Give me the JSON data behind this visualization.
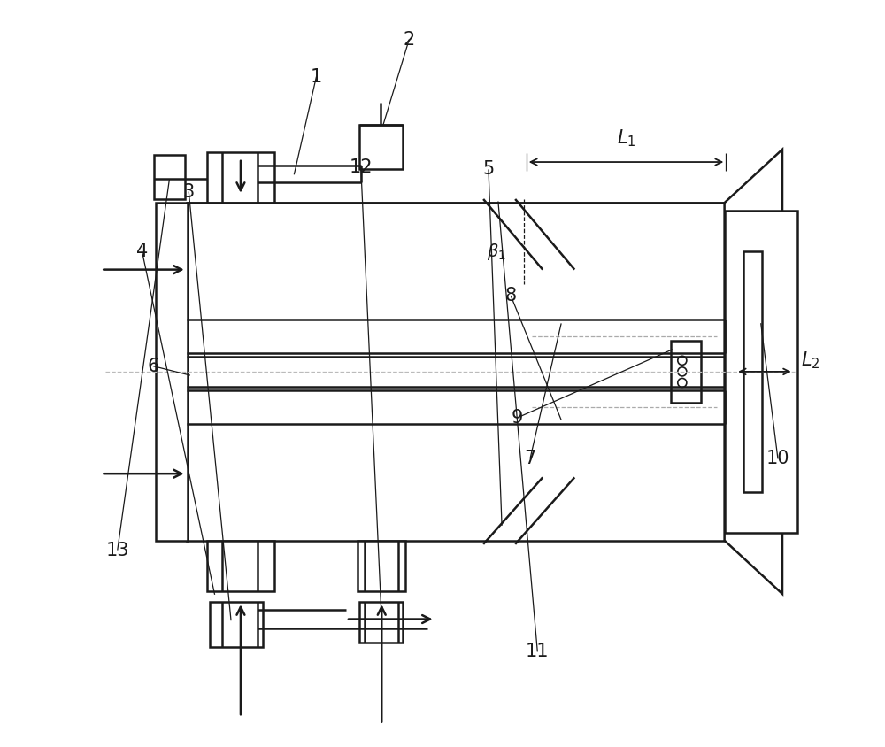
{
  "fig_width": 10.0,
  "fig_height": 8.44,
  "dpi": 100,
  "bg_color": "#ffffff",
  "lc": "#1a1a1a",
  "lw": 1.8,
  "tlw": 0.9,
  "label_fontsize": 15
}
